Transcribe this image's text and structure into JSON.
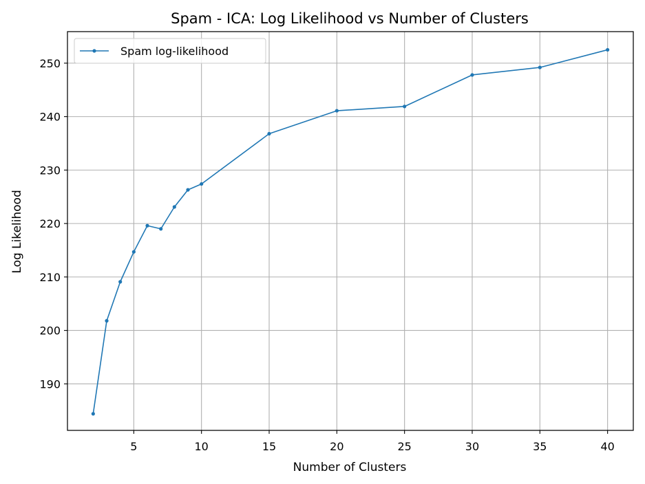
{
  "chart_data": {
    "type": "line",
    "title": "Spam - ICA: Log Likelihood vs Number of Clusters",
    "xlabel": "Number of Clusters",
    "ylabel": "Log Likelihood",
    "xlim": [
      0.1,
      41.9
    ],
    "ylim": [
      181.3,
      255.9
    ],
    "xticks": [
      5,
      10,
      15,
      20,
      25,
      30,
      35,
      40
    ],
    "yticks": [
      190,
      200,
      210,
      220,
      230,
      240,
      250
    ],
    "grid": true,
    "legend_position": "top-left",
    "series": [
      {
        "name": "Spam log-likelihood",
        "color": "#1f77b4",
        "x": [
          2,
          3,
          4,
          5,
          6,
          7,
          8,
          9,
          10,
          15,
          20,
          25,
          30,
          35,
          40
        ],
        "y": [
          184.4,
          201.8,
          209.1,
          214.7,
          219.6,
          219.0,
          223.1,
          226.3,
          227.4,
          236.8,
          241.1,
          241.9,
          247.8,
          249.2,
          252.5
        ]
      }
    ]
  }
}
